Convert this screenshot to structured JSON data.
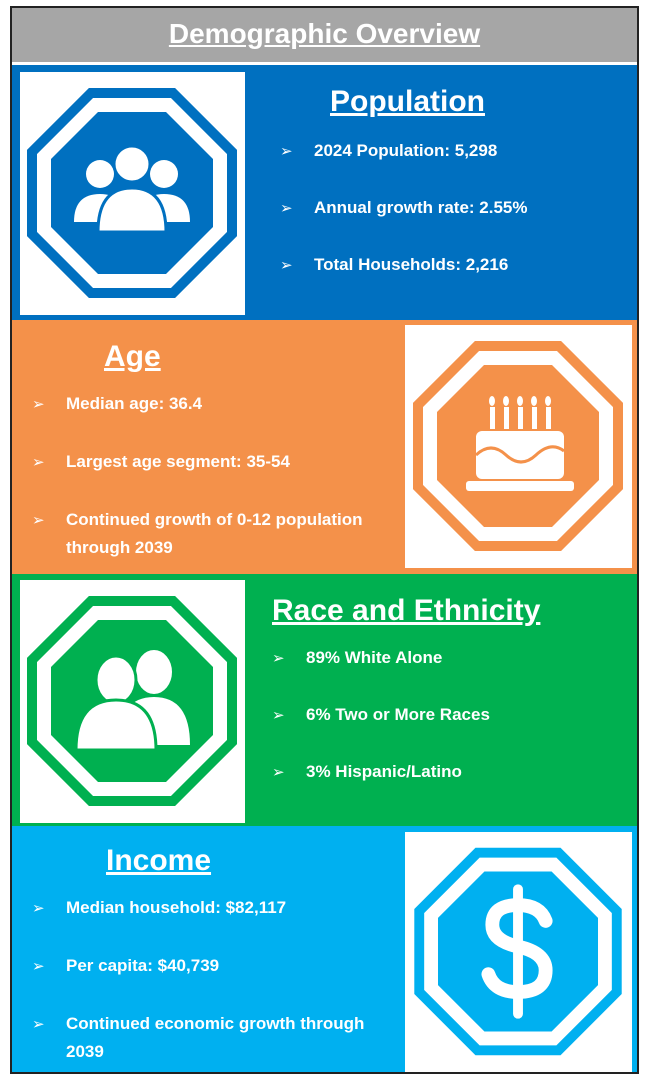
{
  "title": "Demographic Overview",
  "sections": [
    {
      "heading": "Population",
      "items": [
        "2024 Population: 5,298",
        "Annual growth rate: 2.55%",
        "Total Households: 2,216"
      ]
    },
    {
      "heading": "Age",
      "items": [
        "Median age: 36.4",
        "Largest age segment: 35-54",
        "Continued growth of 0-12 population through 2039"
      ]
    },
    {
      "heading": "Race and Ethnicity",
      "items": [
        "89% White Alone",
        "6% Two or More Races",
        "3% Hispanic/Latino"
      ]
    },
    {
      "heading": "Income",
      "items": [
        "Median household: $82,117",
        "Per capita: $40,739",
        "Continued economic growth through 2039"
      ]
    }
  ]
}
